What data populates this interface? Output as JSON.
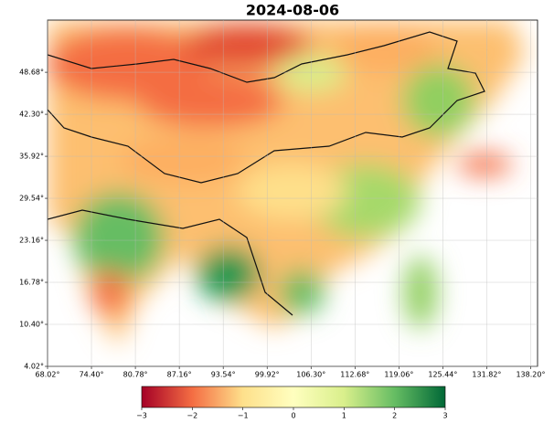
{
  "chart_data": {
    "type": "map",
    "title": "2024-08-06",
    "xlim": [
      68.02,
      139.2
    ],
    "ylim": [
      4.02,
      56.6
    ],
    "xticks": [
      {
        "value": 68.02,
        "label": "68.02°"
      },
      {
        "value": 74.4,
        "label": "74.40°"
      },
      {
        "value": 80.78,
        "label": "80.78°"
      },
      {
        "value": 87.16,
        "label": "87.16°"
      },
      {
        "value": 93.54,
        "label": "93.54°"
      },
      {
        "value": 99.92,
        "label": "99.92°"
      },
      {
        "value": 106.3,
        "label": "106.30°"
      },
      {
        "value": 112.68,
        "label": "112.68°"
      },
      {
        "value": 119.06,
        "label": "119.06°"
      },
      {
        "value": 125.44,
        "label": "125.44°"
      },
      {
        "value": 131.82,
        "label": "131.82°"
      },
      {
        "value": 138.2,
        "label": "138.20°"
      }
    ],
    "yticks": [
      {
        "value": 4.02,
        "label": "4.02°"
      },
      {
        "value": 10.4,
        "label": "10.40°"
      },
      {
        "value": 16.78,
        "label": "16.78°"
      },
      {
        "value": 23.16,
        "label": "23.16°"
      },
      {
        "value": 29.54,
        "label": "29.54°"
      },
      {
        "value": 35.92,
        "label": "35.92°"
      },
      {
        "value": 42.3,
        "label": "42.30°"
      },
      {
        "value": 48.68,
        "label": "48.68°"
      }
    ],
    "grid": true,
    "colorbar": {
      "lim": [
        -3,
        3
      ],
      "colors": [
        "#a50026",
        "#f46d43",
        "#fee08b",
        "#ffffbf",
        "#d9ef8b",
        "#66bd63",
        "#006837"
      ],
      "ticks": [
        {
          "value": -3,
          "label": "−3"
        },
        {
          "value": -2,
          "label": "−2"
        },
        {
          "value": -1,
          "label": "−1"
        },
        0,
        1,
        2,
        3
      ]
    }
  }
}
